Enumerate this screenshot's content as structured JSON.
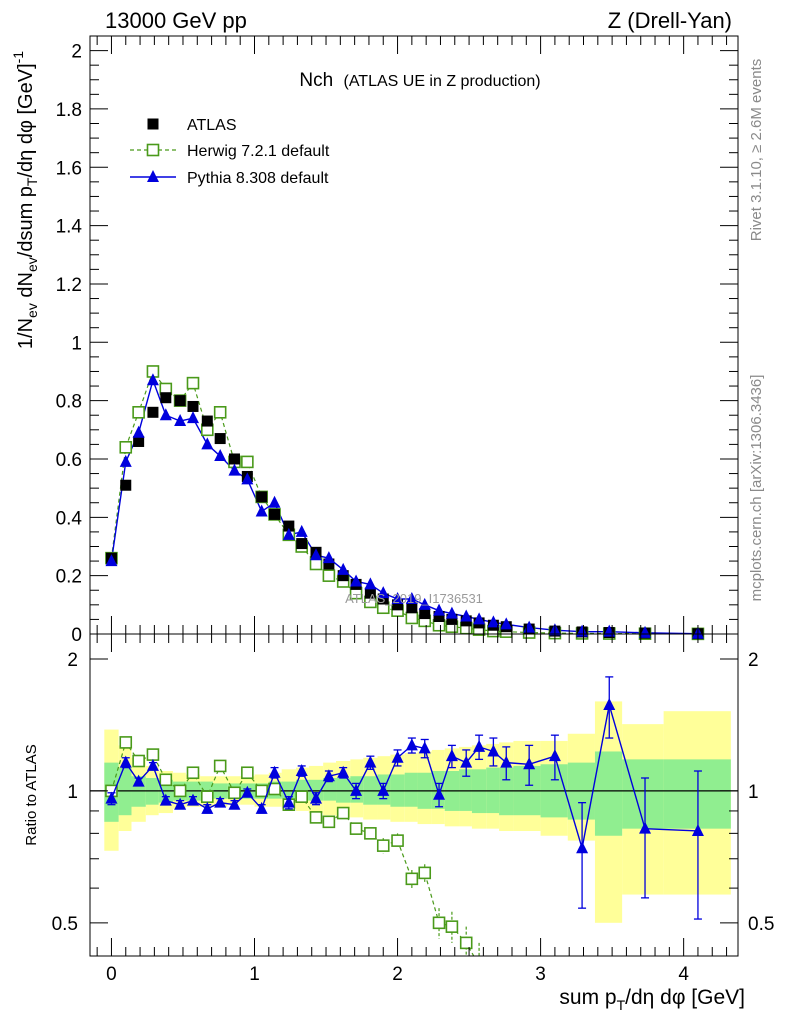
{
  "header": {
    "left": "13000 GeV pp",
    "right": "Z (Drell-Yan)"
  },
  "side_labels": {
    "rivet": "Rivet 3.1.10, ≥ 2.6M events",
    "mcplots": "mcplots.cern.ch [arXiv:1306.3436]"
  },
  "watermark": "ATLAS_2019_I1736531",
  "chart_data": [
    {
      "type": "scatter",
      "title_main": "Nch",
      "title_sub": "(ATLAS UE in Z production)",
      "ylabel": "1/N_ev dN_ev/dsum p_T/dη dφ [GeV]^-1",
      "xlabel": "sum p_T/dη dφ [GeV]",
      "xlim": [
        -0.15,
        4.38
      ],
      "ylim": [
        0,
        2.05
      ],
      "x_ticks": [
        "0",
        "1",
        "2",
        "3",
        "4"
      ],
      "y_ticks": [
        "0",
        "0.2",
        "0.4",
        "0.6",
        "0.8",
        "1",
        "1.2",
        "1.4",
        "1.6",
        "1.8",
        "2"
      ],
      "legend_position": "top-left",
      "x": [
        0.0,
        0.1,
        0.19,
        0.29,
        0.38,
        0.48,
        0.57,
        0.67,
        0.76,
        0.86,
        0.95,
        1.05,
        1.14,
        1.24,
        1.33,
        1.43,
        1.52,
        1.62,
        1.71,
        1.81,
        1.9,
        2.0,
        2.1,
        2.19,
        2.29,
        2.38,
        2.48,
        2.57,
        2.67,
        2.76,
        2.92,
        3.1,
        3.29,
        3.48,
        3.73,
        4.1
      ],
      "series": [
        {
          "name": "ATLAS",
          "color": "#000000",
          "style": "filled-square",
          "values": [
            0.26,
            0.51,
            0.66,
            0.76,
            0.81,
            0.8,
            0.78,
            0.73,
            0.67,
            0.6,
            0.54,
            0.47,
            0.41,
            0.37,
            0.31,
            0.28,
            0.24,
            0.2,
            0.17,
            0.14,
            0.12,
            0.1,
            0.09,
            0.07,
            0.06,
            0.05,
            0.045,
            0.038,
            0.03,
            0.025,
            0.017,
            0.01,
            0.007,
            0.005,
            0.003,
            0.001
          ]
        },
        {
          "name": "Herwig 7.2.1 default",
          "color": "#4a9a1a",
          "style": "open-square-dashed",
          "values": [
            0.26,
            0.64,
            0.76,
            0.9,
            0.84,
            0.8,
            0.86,
            0.7,
            0.76,
            0.59,
            0.59,
            0.47,
            0.41,
            0.34,
            0.3,
            0.24,
            0.2,
            0.18,
            0.14,
            0.11,
            0.09,
            0.08,
            0.055,
            0.045,
            0.03,
            0.025,
            0.02,
            0.015,
            0.01,
            0.008,
            0.005,
            0.003,
            0.002,
            0.0015,
            0.001,
            0.0005
          ]
        },
        {
          "name": "Pythia 8.308 default",
          "color": "#0000dd",
          "style": "filled-triangle-solid",
          "values": [
            0.25,
            0.59,
            0.69,
            0.87,
            0.75,
            0.73,
            0.74,
            0.65,
            0.61,
            0.56,
            0.53,
            0.42,
            0.45,
            0.34,
            0.35,
            0.27,
            0.26,
            0.22,
            0.18,
            0.17,
            0.14,
            0.12,
            0.12,
            0.1,
            0.08,
            0.07,
            0.06,
            0.05,
            0.04,
            0.033,
            0.022,
            0.013,
            0.008,
            0.008,
            0.004,
            0.001
          ]
        }
      ]
    },
    {
      "type": "scatter",
      "ylabel": "Ratio to ATLAS",
      "ylim": [
        0.42,
        2.28
      ],
      "log_y": true,
      "y_ticks": [
        "0.5",
        "1",
        "2"
      ],
      "reference": 1,
      "band_edges": [
        -0.05,
        0.05,
        0.14,
        0.24,
        0.33,
        0.43,
        0.52,
        0.62,
        0.71,
        0.81,
        0.9,
        1.0,
        1.1,
        1.19,
        1.29,
        1.38,
        1.48,
        1.57,
        1.67,
        1.76,
        1.86,
        1.95,
        2.05,
        2.14,
        2.24,
        2.33,
        2.43,
        2.52,
        2.62,
        2.71,
        2.81,
        3.0,
        3.19,
        3.38,
        3.57,
        3.86,
        4.33
      ],
      "stat_band": {
        "color": "#90ee90",
        "low": [
          0.85,
          0.88,
          0.92,
          0.93,
          0.94,
          0.95,
          0.95,
          0.95,
          0.96,
          0.96,
          0.96,
          0.96,
          0.96,
          0.96,
          0.95,
          0.95,
          0.95,
          0.94,
          0.94,
          0.93,
          0.93,
          0.92,
          0.92,
          0.91,
          0.91,
          0.9,
          0.9,
          0.89,
          0.89,
          0.88,
          0.88,
          0.87,
          0.86,
          0.79,
          0.82,
          0.82
        ],
        "high": [
          1.16,
          1.13,
          1.08,
          1.07,
          1.06,
          1.05,
          1.05,
          1.05,
          1.04,
          1.04,
          1.04,
          1.04,
          1.05,
          1.05,
          1.06,
          1.06,
          1.07,
          1.07,
          1.08,
          1.08,
          1.09,
          1.09,
          1.1,
          1.1,
          1.11,
          1.11,
          1.12,
          1.12,
          1.13,
          1.13,
          1.14,
          1.15,
          1.16,
          1.23,
          1.18,
          1.18
        ]
      },
      "syst_band": {
        "color": "#ffff99",
        "low": [
          0.73,
          0.81,
          0.85,
          0.88,
          0.89,
          0.91,
          0.92,
          0.92,
          0.92,
          0.93,
          0.93,
          0.92,
          0.92,
          0.91,
          0.9,
          0.89,
          0.88,
          0.87,
          0.87,
          0.86,
          0.86,
          0.85,
          0.85,
          0.84,
          0.84,
          0.83,
          0.83,
          0.82,
          0.82,
          0.81,
          0.81,
          0.79,
          0.77,
          0.5,
          0.58,
          0.58
        ],
        "high": [
          1.38,
          1.27,
          1.19,
          1.14,
          1.11,
          1.1,
          1.09,
          1.08,
          1.08,
          1.08,
          1.08,
          1.09,
          1.1,
          1.12,
          1.13,
          1.14,
          1.16,
          1.17,
          1.18,
          1.19,
          1.2,
          1.21,
          1.22,
          1.23,
          1.24,
          1.25,
          1.26,
          1.27,
          1.28,
          1.29,
          1.3,
          1.3,
          1.35,
          1.6,
          1.42,
          1.52
        ]
      },
      "series": [
        {
          "name": "Herwig 7.2.1 default",
          "x": [
            0.0,
            0.1,
            0.19,
            0.29,
            0.38,
            0.48,
            0.57,
            0.67,
            0.76,
            0.86,
            0.95,
            1.05,
            1.14,
            1.24,
            1.33,
            1.43,
            1.52,
            1.62,
            1.71,
            1.81,
            1.9,
            2.0,
            2.1,
            2.19,
            2.29,
            2.38,
            2.48,
            2.57
          ],
          "values": [
            1.0,
            1.29,
            1.17,
            1.21,
            1.06,
            1.0,
            1.1,
            0.97,
            1.14,
            0.99,
            1.1,
            1.0,
            1.01,
            0.93,
            0.97,
            0.87,
            0.85,
            0.89,
            0.82,
            0.8,
            0.75,
            0.77,
            0.63,
            0.65,
            0.5,
            0.49,
            0.45,
            0.4
          ],
          "err": [
            0.02,
            0.02,
            0.02,
            0.02,
            0.02,
            0.02,
            0.02,
            0.02,
            0.02,
            0.02,
            0.02,
            0.02,
            0.02,
            0.02,
            0.02,
            0.02,
            0.02,
            0.02,
            0.02,
            0.02,
            0.03,
            0.03,
            0.03,
            0.03,
            0.04,
            0.04,
            0.04,
            0.05
          ]
        },
        {
          "name": "Pythia 8.308 default",
          "x": [
            0.0,
            0.1,
            0.19,
            0.29,
            0.38,
            0.48,
            0.57,
            0.67,
            0.76,
            0.86,
            0.95,
            1.05,
            1.14,
            1.24,
            1.33,
            1.43,
            1.52,
            1.62,
            1.71,
            1.81,
            1.9,
            2.0,
            2.1,
            2.19,
            2.29,
            2.38,
            2.48,
            2.57,
            2.67,
            2.76,
            2.92,
            3.1,
            3.29,
            3.48,
            3.73,
            4.1
          ],
          "values": [
            0.96,
            1.16,
            1.05,
            1.14,
            0.95,
            0.93,
            0.95,
            0.91,
            0.94,
            0.93,
            0.99,
            0.91,
            1.1,
            0.94,
            1.11,
            0.96,
            1.08,
            1.1,
            1.0,
            1.16,
            1.0,
            1.19,
            1.27,
            1.25,
            0.98,
            1.2,
            1.16,
            1.26,
            1.23,
            1.16,
            1.15,
            1.2,
            0.74,
            1.57,
            0.82,
            0.81
          ],
          "err": [
            0.03,
            0.03,
            0.02,
            0.02,
            0.02,
            0.02,
            0.02,
            0.02,
            0.02,
            0.02,
            0.02,
            0.02,
            0.03,
            0.03,
            0.03,
            0.03,
            0.03,
            0.03,
            0.04,
            0.04,
            0.04,
            0.05,
            0.05,
            0.06,
            0.06,
            0.07,
            0.08,
            0.08,
            0.09,
            0.1,
            0.12,
            0.14,
            0.2,
            0.25,
            0.25,
            0.3
          ]
        }
      ]
    }
  ]
}
